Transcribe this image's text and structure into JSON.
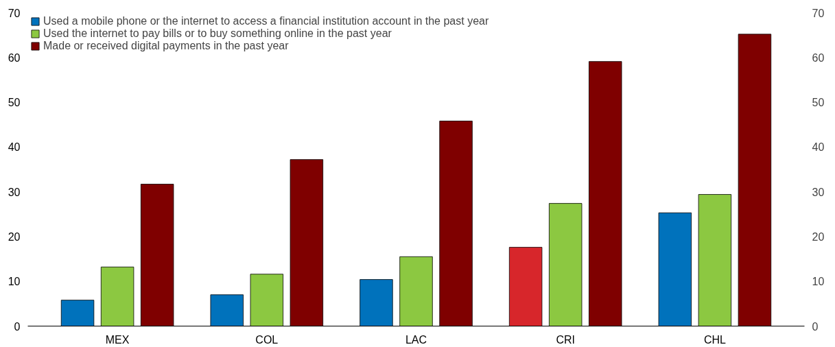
{
  "chart_data": {
    "type": "bar",
    "categories": [
      "MEX",
      "COL",
      "LAC",
      "CRI",
      "CHL"
    ],
    "series": [
      {
        "name": "Used a mobile phone or the internet to access a financial institution account in the past year",
        "color": "#0072bc",
        "colors": [
          "#0072bc",
          "#0072bc",
          "#0072bc",
          "#d7262b",
          "#0072bc"
        ],
        "values": [
          5.8,
          7.0,
          10.4,
          17.6,
          25.3
        ]
      },
      {
        "name": "Used the internet to pay bills or to buy something online in the past year",
        "color": "#8cc841",
        "values": [
          13.2,
          11.6,
          15.5,
          27.4,
          29.4
        ]
      },
      {
        "name": "Made or received digital payments in the past year",
        "color": "#7f0000",
        "values": [
          31.7,
          37.2,
          45.8,
          59.1,
          65.2
        ]
      }
    ],
    "ylim": [
      0,
      70
    ],
    "yticks": [
      0,
      10,
      20,
      30,
      40,
      50,
      60,
      70
    ],
    "y2lim": [
      0,
      70
    ],
    "y2ticks": [
      0,
      10,
      20,
      30,
      40,
      50,
      60,
      70
    ],
    "legend": "top left",
    "grid": false
  }
}
